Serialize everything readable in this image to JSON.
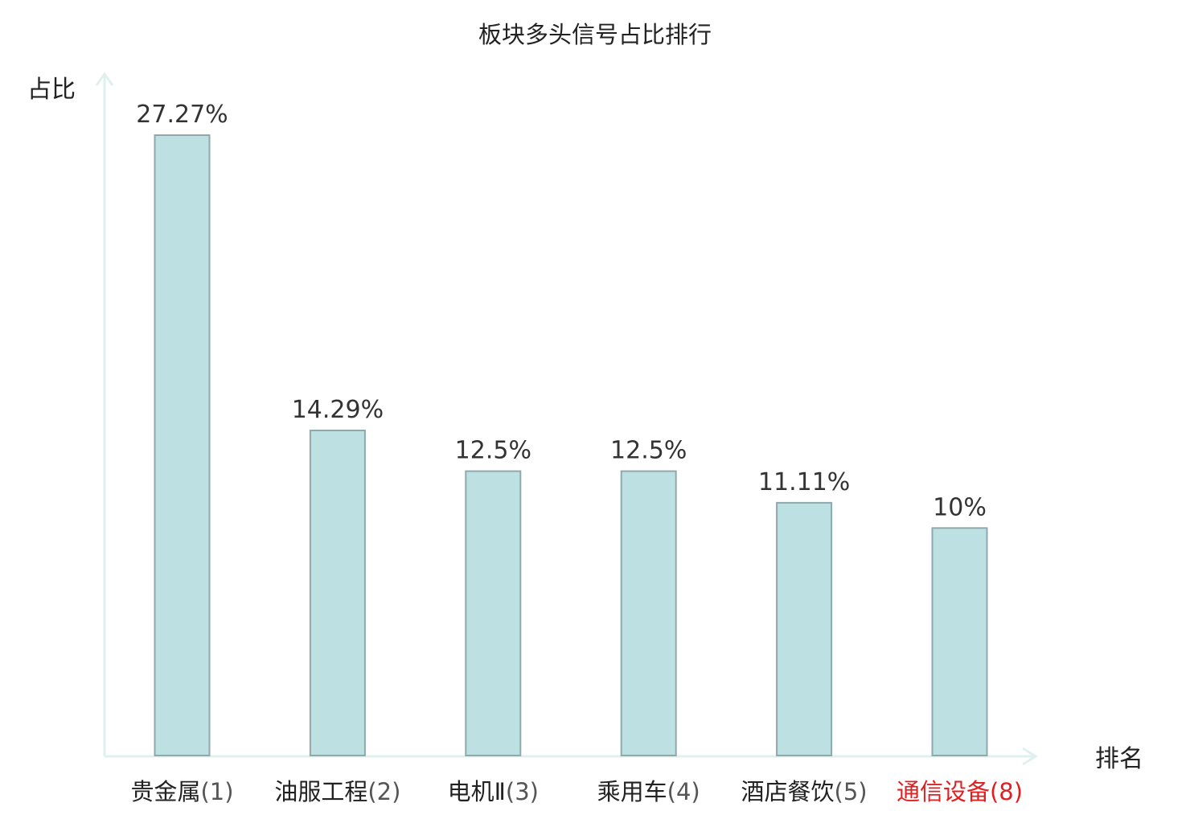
{
  "chart_data": {
    "type": "bar",
    "title": "板块多头信号占比排行",
    "ylabel": "占比",
    "xlabel": "排名",
    "categories": [
      {
        "name": "贵金属",
        "rank": "(1)",
        "highlight": false
      },
      {
        "name": "油服工程",
        "rank": "(2)",
        "highlight": false
      },
      {
        "name": "电机Ⅱ",
        "rank": "(3)",
        "highlight": false
      },
      {
        "name": "乘用车",
        "rank": "(4)",
        "highlight": false
      },
      {
        "name": "酒店餐饮",
        "rank": "(5)",
        "highlight": false
      },
      {
        "name": "通信设备",
        "rank": "(8)",
        "highlight": true
      }
    ],
    "values": [
      27.27,
      14.29,
      12.5,
      12.5,
      11.11,
      10
    ],
    "value_labels": [
      "27.27%",
      "14.29%",
      "12.5%",
      "12.5%",
      "11.11%",
      "10%"
    ],
    "ylim": [
      0,
      27.27
    ],
    "grid": false,
    "legend": "none",
    "colors": {
      "bar_fill": "#bde0e3",
      "bar_stroke": "#8fa9ab",
      "axis": "#dff0ee",
      "text": "#222222",
      "value_text": "#333333",
      "rank_text": "#555555",
      "highlight": "#e02020"
    }
  }
}
